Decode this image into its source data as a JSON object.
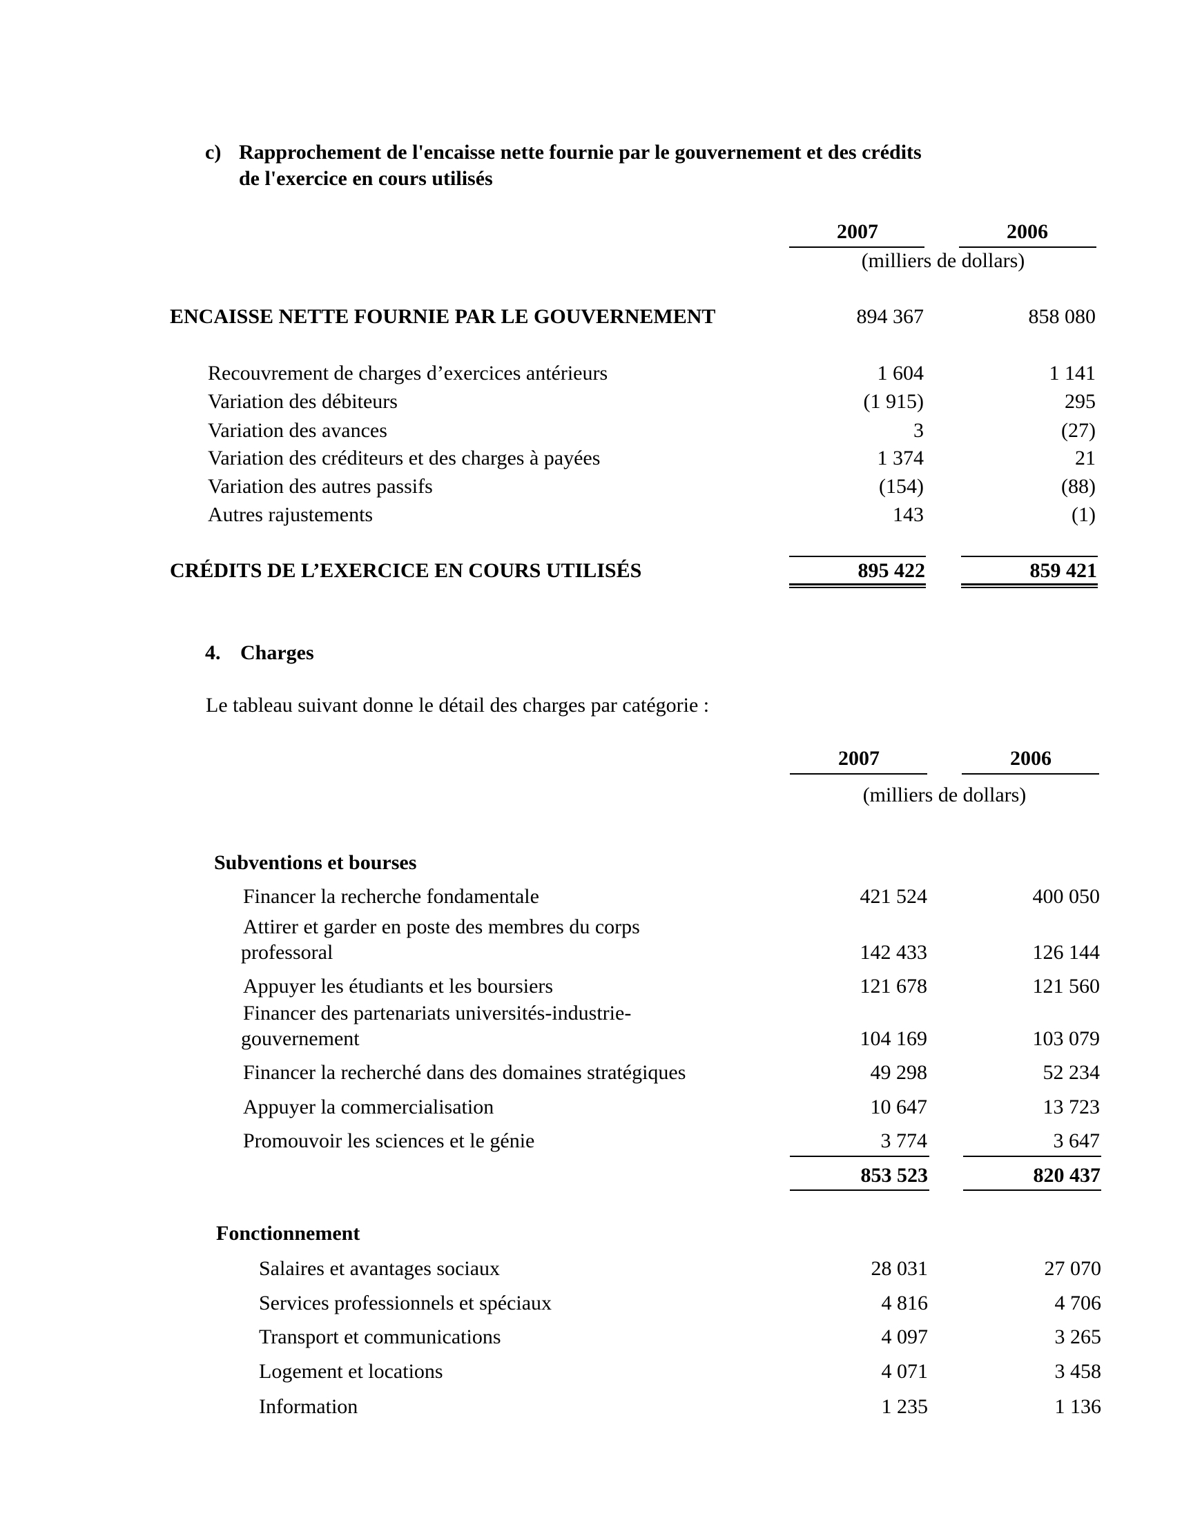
{
  "section_c": {
    "marker": "c)",
    "title_line1": "Rapprochement de l'encaisse nette fournie par le gouvernement et des crédits",
    "title_line2": "de l'exercice en cours utilisés",
    "years": [
      "2007",
      "2006"
    ],
    "unit": "(milliers de dollars)",
    "opening": {
      "label": "ENCAISSE NETTE FOURNIE PAR LE GOUVERNEMENT",
      "values": [
        "894 367",
        "858 080"
      ]
    },
    "rows": [
      {
        "label": "Recouvrement de charges d’exercices antérieurs",
        "values": [
          "1 604",
          "1 141"
        ]
      },
      {
        "label": "Variation des débiteurs",
        "values": [
          "(1 915)",
          "295"
        ]
      },
      {
        "label": "Variation des avances",
        "values": [
          "3",
          "(27)"
        ]
      },
      {
        "label": "Variation des créditeurs et des charges à payées",
        "values": [
          "1 374",
          "21"
        ]
      },
      {
        "label": "Variation des autres passifs",
        "values": [
          "(154)",
          "(88)"
        ]
      },
      {
        "label": "Autres rajustements",
        "values": [
          "143",
          "(1)"
        ]
      }
    ],
    "total": {
      "label": "CRÉDITS DE L’EXERCICE EN COURS UTILISÉS",
      "values": [
        "895 422",
        "859 421"
      ]
    }
  },
  "section_4": {
    "number": "4.",
    "title": "Charges",
    "intro": "Le tableau suivant donne le détail des charges par catégorie :",
    "years": [
      "2007",
      "2006"
    ],
    "unit": "(milliers de dollars)",
    "grants": {
      "heading": "Subventions et bourses",
      "rows": [
        {
          "label": [
            "Financer la recherche fondamentale"
          ],
          "values": [
            "421 524",
            "400 050"
          ]
        },
        {
          "label": [
            "Attirer et garder en poste des membres du corps",
            "professoral"
          ],
          "values": [
            "142 433",
            "126 144"
          ]
        },
        {
          "label": [
            "Appuyer les étudiants et les boursiers"
          ],
          "values": [
            "121 678",
            "121 560"
          ]
        },
        {
          "label": [
            "Financer des partenariats universités-industrie-",
            "gouvernement"
          ],
          "values": [
            "104 169",
            "103 079"
          ]
        },
        {
          "label": [
            "Financer la recherché dans des domaines stratégiques"
          ],
          "values": [
            "49 298",
            "52 234"
          ]
        },
        {
          "label": [
            "Appuyer la commercialisation"
          ],
          "values": [
            "10 647",
            "13 723"
          ]
        },
        {
          "label": [
            "Promouvoir les sciences et le génie"
          ],
          "values": [
            "3 774",
            "3 647"
          ]
        }
      ],
      "total": [
        "853 523",
        "820 437"
      ]
    },
    "operations": {
      "heading": "Fonctionnement",
      "rows": [
        {
          "label": "Salaires et avantages sociaux",
          "values": [
            "28 031",
            "27 070"
          ]
        },
        {
          "label": "Services professionnels et spéciaux",
          "values": [
            "4 816",
            "4 706"
          ]
        },
        {
          "label": "Transport et communications",
          "values": [
            "4 097",
            "3 265"
          ]
        },
        {
          "label": "Logement et locations",
          "values": [
            "4 071",
            "3 458"
          ]
        },
        {
          "label": "Information",
          "values": [
            "1 235",
            "1 136"
          ]
        }
      ]
    }
  }
}
